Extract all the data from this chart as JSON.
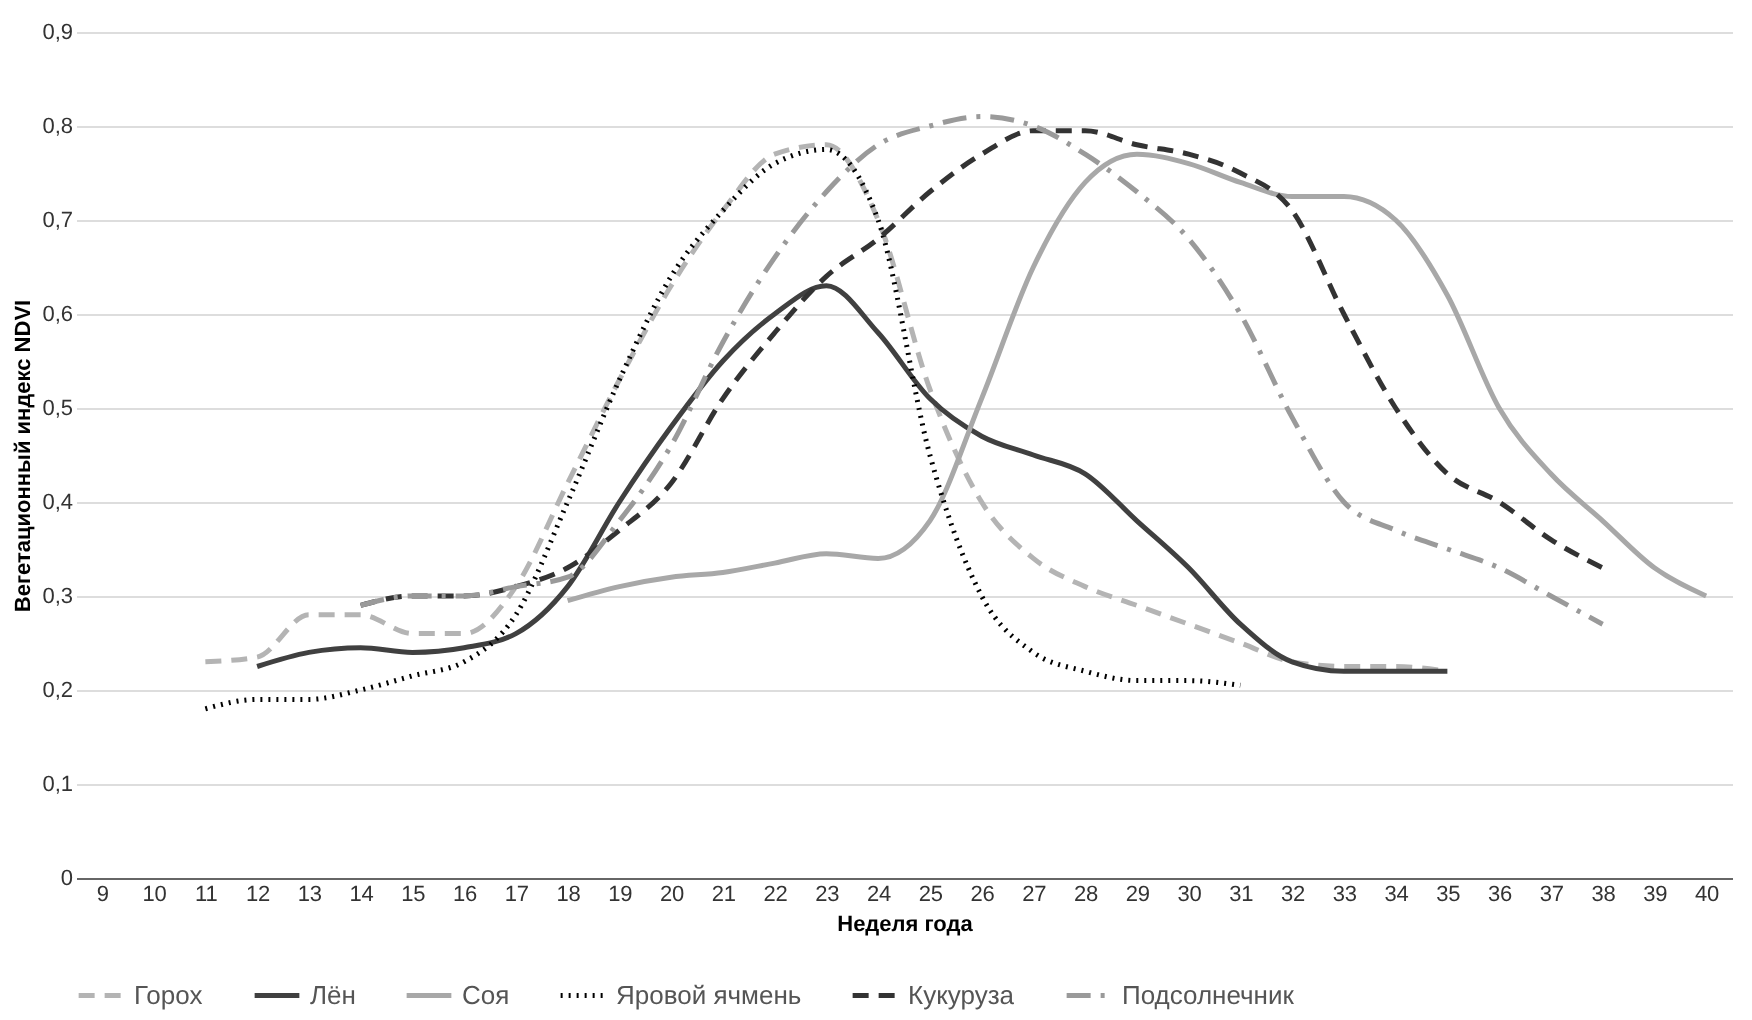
{
  "chart_data": {
    "type": "line",
    "xlabel": "Неделя года",
    "ylabel": "Вегетационный индекс NDVI",
    "categories": [
      "9",
      "10",
      "11",
      "12",
      "13",
      "14",
      "15",
      "16",
      "17",
      "18",
      "19",
      "20",
      "21",
      "22",
      "23",
      "24",
      "25",
      "26",
      "27",
      "28",
      "29",
      "30",
      "31",
      "32",
      "33",
      "34",
      "35",
      "36",
      "37",
      "38",
      "39",
      "40"
    ],
    "ylim": [
      0,
      0.9
    ],
    "yticks": [
      0,
      {
        "value": 0.1,
        "label": "0,1"
      },
      {
        "value": 0.2,
        "label": "0,2"
      },
      {
        "value": 0.3,
        "label": "0,3"
      },
      {
        "value": 0.4,
        "label": "0,4"
      },
      {
        "value": 0.5,
        "label": "0,5"
      },
      {
        "value": 0.6,
        "label": "0,6"
      },
      {
        "value": 0.7,
        "label": "0,7"
      },
      {
        "value": 0.8,
        "label": "0,8"
      },
      {
        "value": 0.9,
        "label": "0,9"
      }
    ],
    "grid": "y",
    "legend": "bottom",
    "marker": "none",
    "series": [
      {
        "name": "Горох",
        "color": "#b4b4b4",
        "line_style": "dashed",
        "values": [
          null,
          null,
          0.23,
          0.235,
          0.28,
          0.28,
          0.26,
          0.26,
          0.31,
          0.42,
          0.53,
          0.63,
          0.71,
          0.77,
          0.78,
          0.7,
          0.52,
          0.4,
          0.34,
          0.31,
          0.29,
          0.27,
          0.25,
          0.23,
          0.225,
          0.225,
          0.22,
          null,
          null,
          null,
          null,
          null
        ]
      },
      {
        "name": "Лён",
        "color": "#404040",
        "line_style": "solid",
        "values": [
          null,
          null,
          null,
          0.225,
          0.24,
          0.245,
          0.24,
          0.245,
          0.26,
          0.31,
          0.4,
          0.48,
          0.55,
          0.6,
          0.63,
          0.58,
          0.51,
          0.47,
          0.45,
          0.43,
          0.38,
          0.33,
          0.27,
          0.23,
          0.22,
          0.22,
          0.22,
          null,
          null,
          null,
          null,
          null
        ]
      },
      {
        "name": "Соя",
        "color": "#a8a8a8",
        "line_style": "solid",
        "values": [
          null,
          null,
          null,
          null,
          null,
          null,
          null,
          null,
          null,
          0.295,
          0.31,
          0.32,
          0.325,
          0.335,
          0.345,
          0.34,
          0.38,
          0.51,
          0.65,
          0.74,
          0.77,
          0.76,
          0.74,
          0.725,
          0.725,
          0.7,
          0.62,
          0.5,
          0.43,
          0.38,
          0.33,
          0.3
        ]
      },
      {
        "name": "Яровой ячмень",
        "color": "#000000",
        "line_style": "dotted",
        "values": [
          null,
          null,
          0.18,
          0.19,
          0.19,
          0.2,
          0.215,
          0.23,
          0.28,
          0.4,
          0.53,
          0.64,
          0.71,
          0.76,
          0.775,
          0.7,
          0.45,
          0.3,
          0.24,
          0.22,
          0.21,
          0.21,
          0.205,
          null,
          null,
          null,
          null,
          null,
          null,
          null,
          null,
          null
        ]
      },
      {
        "name": "Кукуруза",
        "color": "#333333",
        "line_style": "dashed",
        "values": [
          null,
          null,
          null,
          null,
          null,
          0.29,
          0.3,
          0.3,
          0.31,
          0.33,
          0.37,
          0.42,
          0.51,
          0.58,
          0.64,
          0.68,
          0.73,
          0.77,
          0.795,
          0.795,
          0.78,
          0.77,
          0.75,
          0.71,
          0.6,
          0.5,
          0.43,
          0.4,
          0.36,
          0.33,
          null,
          null
        ]
      },
      {
        "name": "Подсолнечник",
        "color": "#9a9a9a",
        "line_style": "dashdot",
        "values": [
          null,
          null,
          null,
          null,
          null,
          0.29,
          0.3,
          0.3,
          0.31,
          0.32,
          0.38,
          0.46,
          0.57,
          0.66,
          0.73,
          0.78,
          0.8,
          0.81,
          0.8,
          0.77,
          0.73,
          0.68,
          0.6,
          0.49,
          0.4,
          0.37,
          0.35,
          0.33,
          0.3,
          0.27,
          null,
          null
        ]
      }
    ]
  }
}
